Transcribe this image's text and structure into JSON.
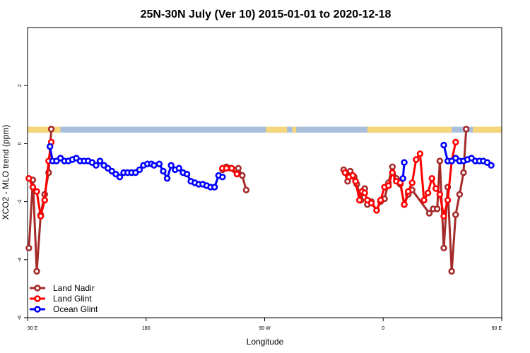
{
  "chart_data": {
    "type": "line",
    "title": "25N-30N July (Ver 10)   2015-01-01 to 2020-12-18",
    "xlabel": "Longitude",
    "ylabel": "XCO2 - MLO trend (ppm)",
    "xlim": [
      90,
      450
    ],
    "ylim": [
      -6,
      4
    ],
    "x_ticks": [
      {
        "value": 90,
        "label": "90 E"
      },
      {
        "value": 180,
        "label": "180"
      },
      {
        "value": 270,
        "label": "90 W"
      },
      {
        "value": 360,
        "label": "0"
      },
      {
        "value": 450,
        "label": "90 E"
      },
      {
        "value": 540,
        "label": "180"
      }
    ],
    "y_ticks": [
      {
        "value": -6,
        "label": "-6"
      },
      {
        "value": -4,
        "label": "-4"
      },
      {
        "value": -2,
        "label": "-2"
      },
      {
        "value": 0,
        "label": "0"
      },
      {
        "value": 2,
        "label": "2"
      }
    ],
    "legend_position": "bottom-left",
    "land_sea_strip": {
      "y_range": [
        0.38,
        0.58
      ],
      "ocean_color": "#a8bfdc",
      "land_color": "#f5d67a",
      "land_segments": [
        [
          90,
          115
        ],
        [
          271,
          280
        ],
        [
          280,
          285
        ],
        [
          283,
          287
        ],
        [
          291,
          294
        ],
        [
          348,
          412
        ],
        [
          428,
          469
        ]
      ]
    },
    "series": [
      {
        "name": "Land Nadir",
        "color": "#a52a2a",
        "points": [
          [
            91,
            -3.6
          ],
          [
            94,
            -1.25
          ],
          [
            97,
            -4.4
          ],
          [
            100,
            -2.45
          ],
          [
            103,
            -1.75
          ],
          [
            106,
            -1.0
          ],
          [
            108,
            0.5
          ],
          [
            238,
            -0.9
          ],
          [
            241,
            -0.8
          ],
          [
            244,
            -0.85
          ],
          [
            247,
            -0.9
          ],
          [
            250,
            -0.85
          ],
          [
            253,
            -1.1
          ],
          [
            256,
            -1.6
          ],
          [
            330,
            -0.9
          ],
          [
            333,
            -1.3
          ],
          [
            335,
            -0.95
          ],
          [
            338,
            -1.15
          ],
          [
            340,
            -1.4
          ],
          [
            343,
            -1.95
          ],
          [
            346,
            -1.55
          ],
          [
            348,
            -2.1
          ],
          [
            351,
            -2.0
          ],
          [
            355,
            -2.3
          ],
          [
            358,
            -2.0
          ],
          [
            361,
            -1.9
          ],
          [
            364,
            -1.35
          ],
          [
            367,
            -0.8
          ],
          [
            370,
            -1.2
          ],
          [
            373,
            -1.4
          ],
          [
            376,
            -2.1
          ],
          [
            379,
            -1.75
          ],
          [
            382,
            -1.6
          ],
          [
            395,
            -2.4
          ],
          [
            398,
            -2.25
          ],
          [
            401,
            -2.25
          ],
          [
            403,
            -0.6
          ],
          [
            406,
            -3.6
          ],
          [
            409,
            -1.5
          ],
          [
            412,
            -4.4
          ],
          [
            415,
            -2.45
          ],
          [
            418,
            -1.75
          ],
          [
            421,
            -1.0
          ],
          [
            423,
            0.5
          ]
        ]
      },
      {
        "name": "Land Glint",
        "color": "#ff0000",
        "points": [
          [
            91,
            -1.2
          ],
          [
            94,
            -1.5
          ],
          [
            97,
            -1.65
          ],
          [
            100,
            -2.5
          ],
          [
            103,
            -1.95
          ],
          [
            106,
            -0.6
          ],
          [
            108,
            0.05
          ],
          [
            238,
            -0.85
          ],
          [
            241,
            -0.85
          ],
          [
            245,
            -0.85
          ],
          [
            249,
            -1.05
          ],
          [
            331,
            -1.0
          ],
          [
            334,
            -1.15
          ],
          [
            337,
            -1.1
          ],
          [
            339,
            -1.3
          ],
          [
            342,
            -1.95
          ],
          [
            344,
            -1.65
          ],
          [
            346,
            -1.7
          ],
          [
            348,
            -1.95
          ],
          [
            351,
            -2.05
          ],
          [
            355,
            -2.3
          ],
          [
            358,
            -1.95
          ],
          [
            361,
            -1.5
          ],
          [
            364,
            -1.45
          ],
          [
            367,
            -1.0
          ],
          [
            370,
            -1.3
          ],
          [
            373,
            -1.35
          ],
          [
            376,
            -2.1
          ],
          [
            379,
            -1.65
          ],
          [
            382,
            -1.35
          ],
          [
            385,
            -0.55
          ],
          [
            388,
            -0.35
          ],
          [
            391,
            -1.95
          ],
          [
            394,
            -1.7
          ],
          [
            397,
            -1.2
          ],
          [
            400,
            -1.55
          ],
          [
            403,
            -1.75
          ],
          [
            406,
            -2.5
          ],
          [
            409,
            -1.95
          ],
          [
            412,
            -0.6
          ],
          [
            415,
            0.05
          ]
        ]
      },
      {
        "name": "Ocean Glint",
        "color": "#0000ff",
        "points": [
          [
            107,
            -0.1
          ],
          [
            109,
            -0.6
          ],
          [
            112,
            -0.6
          ],
          [
            115,
            -0.5
          ],
          [
            118,
            -0.6
          ],
          [
            121,
            -0.6
          ],
          [
            124,
            -0.55
          ],
          [
            127,
            -0.5
          ],
          [
            130,
            -0.6
          ],
          [
            133,
            -0.6
          ],
          [
            136,
            -0.6
          ],
          [
            139,
            -0.65
          ],
          [
            142,
            -0.75
          ],
          [
            145,
            -0.6
          ],
          [
            148,
            -0.75
          ],
          [
            151,
            -0.85
          ],
          [
            154,
            -0.95
          ],
          [
            157,
            -1.05
          ],
          [
            160,
            -1.15
          ],
          [
            163,
            -1.0
          ],
          [
            166,
            -1.0
          ],
          [
            169,
            -1.0
          ],
          [
            172,
            -1.0
          ],
          [
            175,
            -0.9
          ],
          [
            178,
            -0.75
          ],
          [
            181,
            -0.7
          ],
          [
            184,
            -0.7
          ],
          [
            186,
            -0.75
          ],
          [
            190,
            -0.7
          ],
          [
            193,
            -0.95
          ],
          [
            196,
            -1.2
          ],
          [
            199,
            -0.75
          ],
          [
            202,
            -0.9
          ],
          [
            205,
            -0.85
          ],
          [
            208,
            -1.0
          ],
          [
            211,
            -1.05
          ],
          [
            214,
            -1.3
          ],
          [
            217,
            -1.35
          ],
          [
            220,
            -1.4
          ],
          [
            223,
            -1.4
          ],
          [
            226,
            -1.45
          ],
          [
            229,
            -1.5
          ],
          [
            232,
            -1.5
          ],
          [
            235,
            -1.1
          ],
          [
            238,
            -1.15
          ],
          [
            375,
            -1.2
          ],
          [
            376,
            -0.65
          ],
          [
            406,
            -0.05
          ],
          [
            409,
            -0.6
          ],
          [
            412,
            -0.6
          ],
          [
            415,
            -0.5
          ],
          [
            418,
            -0.6
          ],
          [
            421,
            -0.6
          ],
          [
            424,
            -0.55
          ],
          [
            427,
            -0.5
          ],
          [
            430,
            -0.6
          ],
          [
            433,
            -0.6
          ],
          [
            436,
            -0.6
          ],
          [
            439,
            -0.65
          ],
          [
            442,
            -0.75
          ]
        ]
      }
    ]
  }
}
